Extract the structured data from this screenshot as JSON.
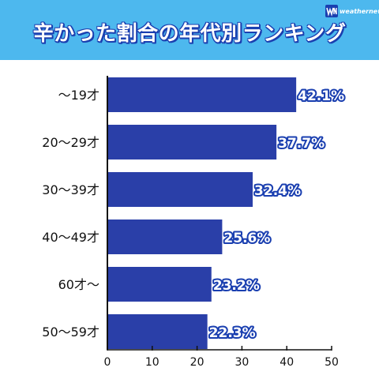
{
  "header": {
    "title": "辛かった割合の年代別ランキング",
    "brand": "weathernews",
    "background_color": "#4db8ee"
  },
  "chart_data": {
    "type": "bar",
    "orientation": "horizontal",
    "categories": [
      "〜19才",
      "20〜29才",
      "30〜39才",
      "40〜49才",
      "60才〜",
      "50〜59才"
    ],
    "values": [
      42.1,
      37.7,
      32.4,
      25.6,
      23.2,
      22.3
    ],
    "value_labels": [
      "42.1%",
      "37.7%",
      "32.4%",
      "25.6%",
      "23.2%",
      "22.3%"
    ],
    "xlim": [
      0,
      50
    ],
    "xticks": [
      0,
      10,
      20,
      30,
      40,
      50
    ],
    "bar_color": "#2a3fa8",
    "label_outline_color": "#1a3fb0",
    "grid": false
  }
}
